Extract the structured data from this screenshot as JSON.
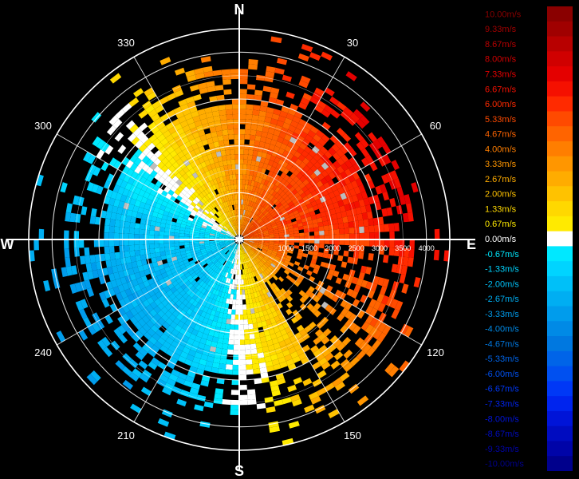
{
  "chart_data": {
    "type": "polar-heatmap",
    "title": "",
    "compass_labels": [
      "N",
      "E",
      "S",
      "W"
    ],
    "azimuth_labels": [
      {
        "deg": 30,
        "text": "30"
      },
      {
        "deg": 60,
        "text": "60"
      },
      {
        "deg": 120,
        "text": "120"
      },
      {
        "deg": 150,
        "text": "150"
      },
      {
        "deg": 210,
        "text": "210"
      },
      {
        "deg": 240,
        "text": "240"
      },
      {
        "deg": 300,
        "text": "300"
      },
      {
        "deg": 330,
        "text": "330"
      }
    ],
    "range_labels": [
      {
        "value": 1000,
        "text": "1000"
      },
      {
        "value": 1500,
        "text": "1500"
      },
      {
        "value": 2000,
        "text": "2000"
      },
      {
        "value": 2500,
        "text": "2500"
      },
      {
        "value": 3000,
        "text": "3000"
      },
      {
        "value": 3500,
        "text": "3500"
      },
      {
        "value": 4000,
        "text": "4000"
      }
    ],
    "range_rings": [
      500,
      1000,
      1500,
      2000,
      2500,
      3000,
      3500,
      4000,
      4500
    ],
    "max_range": 4500,
    "velocity_range": [
      -10,
      10
    ],
    "legend": {
      "entries": [
        {
          "label": "10.00m/s",
          "color": "#8a0000"
        },
        {
          "label": "9.33m/s",
          "color": "#a00000"
        },
        {
          "label": "8.67m/s",
          "color": "#b80000"
        },
        {
          "label": "8.00m/s",
          "color": "#d00000"
        },
        {
          "label": "7.33m/s",
          "color": "#e40000"
        },
        {
          "label": "6.67m/s",
          "color": "#f51000"
        },
        {
          "label": "6.00m/s",
          "color": "#ff2a00"
        },
        {
          "label": "5.33m/s",
          "color": "#ff4a00"
        },
        {
          "label": "4.67m/s",
          "color": "#ff6400"
        },
        {
          "label": "4.00m/s",
          "color": "#ff7e00"
        },
        {
          "label": "3.33m/s",
          "color": "#ff9600"
        },
        {
          "label": "2.67m/s",
          "color": "#ffac00"
        },
        {
          "label": "2.00m/s",
          "color": "#ffc200"
        },
        {
          "label": "1.33m/s",
          "color": "#ffd800"
        },
        {
          "label": "0.67m/s",
          "color": "#ffea00"
        },
        {
          "label": "0.00m/s",
          "color": "#ffffff"
        },
        {
          "label": "-0.67m/s",
          "color": "#00e8ff"
        },
        {
          "label": "-1.33m/s",
          "color": "#00d4ff"
        },
        {
          "label": "-2.00m/s",
          "color": "#00c0f8"
        },
        {
          "label": "-2.67m/s",
          "color": "#00aef2"
        },
        {
          "label": "-3.33m/s",
          "color": "#009cec"
        },
        {
          "label": "-4.00m/s",
          "color": "#008ae6"
        },
        {
          "label": "-4.67m/s",
          "color": "#0078e0"
        },
        {
          "label": "-5.33m/s",
          "color": "#0064e8"
        },
        {
          "label": "-6.00m/s",
          "color": "#0050f0"
        },
        {
          "label": "-6.67m/s",
          "color": "#0038f6"
        },
        {
          "label": "-7.33m/s",
          "color": "#0024ee"
        },
        {
          "label": "-8.00m/s",
          "color": "#0014d8"
        },
        {
          "label": "-8.67m/s",
          "color": "#000cc0"
        },
        {
          "label": "-9.33m/s",
          "color": "#0004a8"
        },
        {
          "label": "-10.00m/s",
          "color": "#00008c"
        }
      ]
    }
  }
}
